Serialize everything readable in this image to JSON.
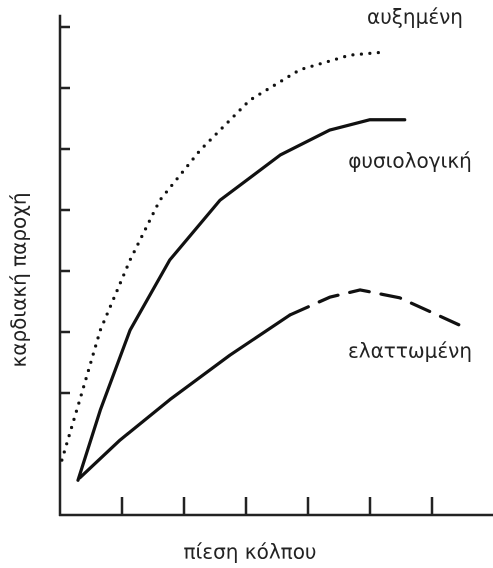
{
  "chart_data": {
    "type": "line",
    "xlabel": "πίεση κόλπου",
    "ylabel": "καρδιακή παροχή",
    "xlim": [
      0,
      7.1
    ],
    "ylim": [
      0,
      8.2
    ],
    "xticks": [
      1,
      2,
      3,
      4,
      5,
      6
    ],
    "yticks": [
      2,
      3,
      4,
      5,
      6,
      7,
      8
    ],
    "color": "#111111",
    "series": [
      {
        "name": "αυξημένη",
        "style": "dotted",
        "x": [
          0.03,
          0.32,
          0.65,
          1.13,
          1.61,
          2.26,
          3.06,
          3.87,
          4.68,
          5.24
        ],
        "values": [
          0.9,
          1.89,
          3.03,
          4.18,
          5.16,
          5.98,
          6.8,
          7.3,
          7.54,
          7.59
        ]
      },
      {
        "name": "φυσιολογική",
        "style": "solid",
        "x": [
          0.29,
          0.65,
          1.13,
          1.77,
          2.58,
          3.55,
          4.35,
          5.0,
          5.56
        ],
        "values": [
          0.57,
          1.72,
          3.03,
          4.18,
          5.16,
          5.9,
          6.31,
          6.48,
          6.48
        ]
      },
      {
        "name": "ελαττωμένη",
        "style": "solid-then-dashed",
        "dash_start": 3.71,
        "x": [
          0.32,
          0.97,
          1.77,
          2.74,
          3.71,
          4.35,
          4.84,
          5.48,
          6.45
        ],
        "values": [
          0.61,
          1.23,
          1.89,
          2.62,
          3.28,
          3.57,
          3.69,
          3.56,
          3.11
        ]
      }
    ]
  }
}
